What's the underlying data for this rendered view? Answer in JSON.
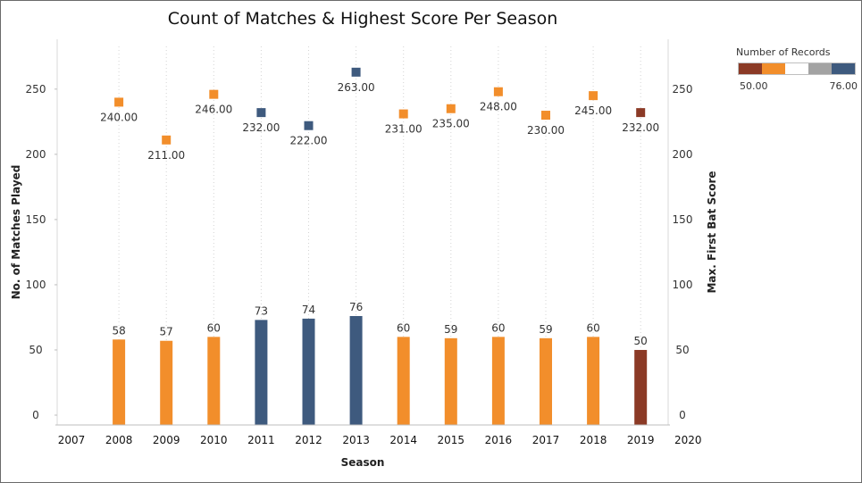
{
  "chart_data": {
    "type": "bar",
    "title": "Count of Matches & Highest Score  Per Season",
    "xlabel": "Season",
    "ylabel_left": "No. of Matches Played",
    "ylabel_right": "Max. First Bat Score",
    "x_ticks": [
      "2007",
      "2008",
      "2009",
      "2010",
      "2011",
      "2012",
      "2013",
      "2014",
      "2015",
      "2016",
      "2017",
      "2018",
      "2019",
      "2020"
    ],
    "categories": [
      "2008",
      "2009",
      "2010",
      "2011",
      "2012",
      "2013",
      "2014",
      "2015",
      "2016",
      "2017",
      "2018",
      "2019"
    ],
    "ylim": [
      0,
      280
    ],
    "y_ticks": [
      0,
      50,
      100,
      150,
      200,
      250
    ],
    "series": [
      {
        "type": "bar",
        "axis": "left",
        "values": [
          58,
          57,
          60,
          73,
          74,
          76,
          60,
          59,
          60,
          59,
          60,
          50
        ],
        "labels": [
          "58",
          "57",
          "60",
          "73",
          "74",
          "76",
          "60",
          "59",
          "60",
          "59",
          "60",
          "50"
        ]
      },
      {
        "type": "scatter",
        "axis": "right",
        "values": [
          240,
          211,
          246,
          232,
          222,
          263,
          231,
          235,
          248,
          230,
          245,
          232
        ],
        "labels": [
          "240.00",
          "211.00",
          "246.00",
          "232.00",
          "222.00",
          "263.00",
          "231.00",
          "235.00",
          "248.00",
          "230.00",
          "245.00",
          "232.00"
        ]
      }
    ],
    "grid": {
      "vertical": true,
      "horizontal": false
    },
    "legend": {
      "title": "Number of Records",
      "min_label": "50.00",
      "max_label": "76.00",
      "placement": "top-right"
    }
  },
  "colors": {
    "low": "#8b3a26",
    "mid": "#f28e2b",
    "high": "#3e5a7e",
    "legend_stops": [
      "#8b3a26",
      "#f28e2b",
      "#ffffff",
      "#a3a3a3",
      "#3e5a7e"
    ]
  }
}
